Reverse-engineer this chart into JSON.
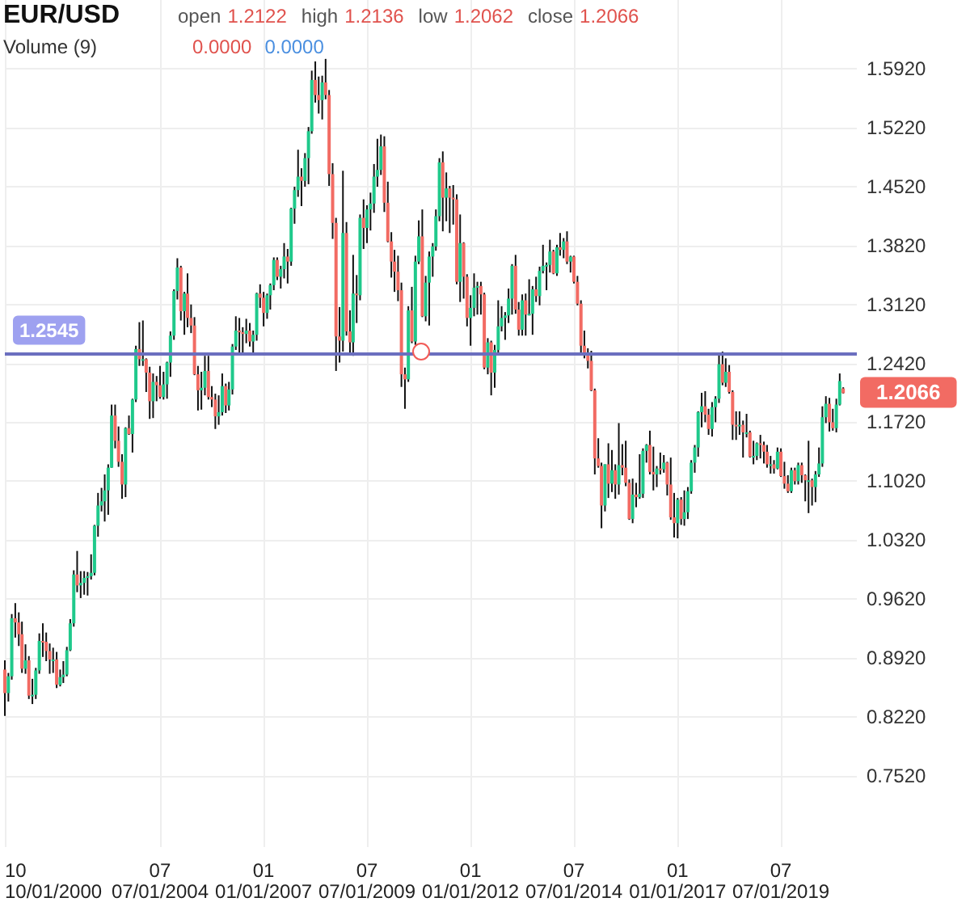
{
  "chart_data": {
    "type": "candlestick",
    "title": "EUR/USD",
    "annotations": [
      "open",
      "1.2122",
      "high",
      "1.2136",
      "low",
      "1.2062",
      "close",
      "1.2066",
      "Volume (9)",
      "0.0000",
      "0.0000",
      {
        "text": "1.2066",
        "x": "2021-01",
        "y": 1.2066
      }
    ],
    "x": [
      "2000-10",
      "2000-11",
      "2000-12",
      "2001-01",
      "2001-02",
      "2001-03",
      "2001-04",
      "2001-05",
      "2001-06",
      "2001-07",
      "2001-08",
      "2001-09",
      "2001-10",
      "2001-11",
      "2001-12",
      "2002-01",
      "2002-02",
      "2002-03",
      "2002-04",
      "2002-05",
      "2002-06",
      "2002-07",
      "2002-08",
      "2002-09",
      "2002-10",
      "2002-11",
      "2002-12",
      "2003-01",
      "2003-02",
      "2003-03",
      "2003-04",
      "2003-05",
      "2003-06",
      "2003-07",
      "2003-08",
      "2003-09",
      "2003-10",
      "2003-11",
      "2003-12",
      "2004-01",
      "2004-02",
      "2004-03",
      "2004-04",
      "2004-05",
      "2004-06",
      "2004-07",
      "2004-08",
      "2004-09",
      "2004-10",
      "2004-11",
      "2004-12",
      "2005-01",
      "2005-02",
      "2005-03",
      "2005-04",
      "2005-05",
      "2005-06",
      "2005-07",
      "2005-08",
      "2005-09",
      "2005-10",
      "2005-11",
      "2005-12",
      "2006-01",
      "2006-02",
      "2006-03",
      "2006-04",
      "2006-05",
      "2006-06",
      "2006-07",
      "2006-08",
      "2006-09",
      "2006-10",
      "2006-11",
      "2006-12",
      "2007-01",
      "2007-02",
      "2007-03",
      "2007-04",
      "2007-05",
      "2007-06",
      "2007-07",
      "2007-08",
      "2007-09",
      "2007-10",
      "2007-11",
      "2007-12",
      "2008-01",
      "2008-02",
      "2008-03",
      "2008-04",
      "2008-05",
      "2008-06",
      "2008-07",
      "2008-08",
      "2008-09",
      "2008-10",
      "2008-11",
      "2008-12",
      "2009-01",
      "2009-02",
      "2009-03",
      "2009-04",
      "2009-05",
      "2009-06",
      "2009-07",
      "2009-08",
      "2009-09",
      "2009-10",
      "2009-11",
      "2009-12",
      "2010-01",
      "2010-02",
      "2010-03",
      "2010-04",
      "2010-05",
      "2010-06",
      "2010-07",
      "2010-08",
      "2010-09",
      "2010-10",
      "2010-11",
      "2010-12",
      "2011-01",
      "2011-02",
      "2011-03",
      "2011-04",
      "2011-05",
      "2011-06",
      "2011-07",
      "2011-08",
      "2011-09",
      "2011-10",
      "2011-11",
      "2011-12",
      "2012-01",
      "2012-02",
      "2012-03",
      "2012-04",
      "2012-05",
      "2012-06",
      "2012-07",
      "2012-08",
      "2012-09",
      "2012-10",
      "2012-11",
      "2012-12",
      "2013-01",
      "2013-02",
      "2013-03",
      "2013-04",
      "2013-05",
      "2013-06",
      "2013-07",
      "2013-08",
      "2013-09",
      "2013-10",
      "2013-11",
      "2013-12",
      "2014-01",
      "2014-02",
      "2014-03",
      "2014-04",
      "2014-05",
      "2014-06",
      "2014-07",
      "2014-08",
      "2014-09",
      "2014-10",
      "2014-11",
      "2014-12",
      "2015-01",
      "2015-02",
      "2015-03",
      "2015-04",
      "2015-05",
      "2015-06",
      "2015-07",
      "2015-08",
      "2015-09",
      "2015-10",
      "2015-11",
      "2015-12",
      "2016-01",
      "2016-02",
      "2016-03",
      "2016-04",
      "2016-05",
      "2016-06",
      "2016-07",
      "2016-08",
      "2016-09",
      "2016-10",
      "2016-11",
      "2016-12",
      "2017-01",
      "2017-02",
      "2017-03",
      "2017-04",
      "2017-05",
      "2017-06",
      "2017-07",
      "2017-08",
      "2017-09",
      "2017-10",
      "2017-11",
      "2017-12",
      "2018-01",
      "2018-02",
      "2018-03",
      "2018-04",
      "2018-05",
      "2018-06",
      "2018-07",
      "2018-08",
      "2018-09",
      "2018-10",
      "2018-11",
      "2018-12",
      "2019-01",
      "2019-02",
      "2019-03",
      "2019-04",
      "2019-05",
      "2019-06",
      "2019-07",
      "2019-08",
      "2019-09",
      "2019-10",
      "2019-11",
      "2019-12",
      "2020-01",
      "2020-02",
      "2020-03",
      "2020-04",
      "2020-05",
      "2020-06",
      "2020-07",
      "2020-08",
      "2020-09",
      "2020-10",
      "2020-11",
      "2020-12",
      "2021-01"
    ],
    "ohlc": [
      [
        0.878,
        0.889,
        0.823,
        0.85
      ],
      [
        0.85,
        0.874,
        0.84,
        0.87
      ],
      [
        0.87,
        0.944,
        0.866,
        0.939
      ],
      [
        0.939,
        0.957,
        0.916,
        0.934
      ],
      [
        0.934,
        0.946,
        0.906,
        0.92
      ],
      [
        0.92,
        0.935,
        0.874,
        0.879
      ],
      [
        0.879,
        0.908,
        0.873,
        0.889
      ],
      [
        0.889,
        0.894,
        0.843,
        0.847
      ],
      [
        0.847,
        0.867,
        0.837,
        0.848
      ],
      [
        0.848,
        0.88,
        0.843,
        0.877
      ],
      [
        0.877,
        0.921,
        0.873,
        0.912
      ],
      [
        0.912,
        0.933,
        0.893,
        0.911
      ],
      [
        0.911,
        0.922,
        0.888,
        0.9
      ],
      [
        0.9,
        0.909,
        0.873,
        0.89
      ],
      [
        0.89,
        0.904,
        0.874,
        0.89
      ],
      [
        0.89,
        0.899,
        0.856,
        0.86
      ],
      [
        0.86,
        0.878,
        0.858,
        0.869
      ],
      [
        0.869,
        0.888,
        0.862,
        0.872
      ],
      [
        0.872,
        0.905,
        0.87,
        0.901
      ],
      [
        0.901,
        0.938,
        0.9,
        0.933
      ],
      [
        0.933,
        0.996,
        0.929,
        0.991
      ],
      [
        0.991,
        1.019,
        0.97,
        0.978
      ],
      [
        0.978,
        0.995,
        0.963,
        0.981
      ],
      [
        0.981,
        0.995,
        0.967,
        0.987
      ],
      [
        0.987,
        0.994,
        0.966,
        0.989
      ],
      [
        0.989,
        1.015,
        0.985,
        0.993
      ],
      [
        0.993,
        1.05,
        0.99,
        1.049
      ],
      [
        1.049,
        1.088,
        1.036,
        1.073
      ],
      [
        1.073,
        1.094,
        1.066,
        1.078
      ],
      [
        1.078,
        1.11,
        1.054,
        1.091
      ],
      [
        1.091,
        1.122,
        1.062,
        1.118
      ],
      [
        1.118,
        1.193,
        1.118,
        1.18
      ],
      [
        1.18,
        1.193,
        1.141,
        1.15
      ],
      [
        1.15,
        1.167,
        1.119,
        1.125
      ],
      [
        1.125,
        1.134,
        1.081,
        1.098
      ],
      [
        1.098,
        1.166,
        1.083,
        1.165
      ],
      [
        1.165,
        1.18,
        1.157,
        1.158
      ],
      [
        1.158,
        1.2,
        1.136,
        1.199
      ],
      [
        1.199,
        1.263,
        1.196,
        1.259
      ],
      [
        1.259,
        1.291,
        1.239,
        1.247
      ],
      [
        1.247,
        1.293,
        1.239,
        1.247
      ],
      [
        1.247,
        1.248,
        1.208,
        1.231
      ],
      [
        1.231,
        1.238,
        1.176,
        1.197
      ],
      [
        1.197,
        1.23,
        1.177,
        1.22
      ],
      [
        1.22,
        1.227,
        1.197,
        1.216
      ],
      [
        1.216,
        1.239,
        1.2,
        1.202
      ],
      [
        1.202,
        1.232,
        1.199,
        1.217
      ],
      [
        1.217,
        1.244,
        1.2,
        1.243
      ],
      [
        1.243,
        1.28,
        1.226,
        1.275
      ],
      [
        1.275,
        1.33,
        1.27,
        1.328
      ],
      [
        1.328,
        1.367,
        1.318,
        1.356
      ],
      [
        1.356,
        1.358,
        1.293,
        1.304
      ],
      [
        1.304,
        1.327,
        1.276,
        1.325
      ],
      [
        1.325,
        1.349,
        1.285,
        1.296
      ],
      [
        1.296,
        1.312,
        1.278,
        1.287
      ],
      [
        1.287,
        1.297,
        1.228,
        1.229
      ],
      [
        1.229,
        1.239,
        1.186,
        1.21
      ],
      [
        1.21,
        1.232,
        1.187,
        1.213
      ],
      [
        1.213,
        1.251,
        1.204,
        1.233
      ],
      [
        1.233,
        1.251,
        1.199,
        1.202
      ],
      [
        1.202,
        1.215,
        1.19,
        1.199
      ],
      [
        1.199,
        1.206,
        1.164,
        1.179
      ],
      [
        1.179,
        1.204,
        1.169,
        1.184
      ],
      [
        1.184,
        1.23,
        1.18,
        1.215
      ],
      [
        1.215,
        1.218,
        1.183,
        1.192
      ],
      [
        1.192,
        1.22,
        1.186,
        1.211
      ],
      [
        1.211,
        1.265,
        1.205,
        1.262
      ],
      [
        1.262,
        1.298,
        1.258,
        1.281
      ],
      [
        1.281,
        1.296,
        1.252,
        1.279
      ],
      [
        1.279,
        1.285,
        1.252,
        1.277
      ],
      [
        1.277,
        1.295,
        1.266,
        1.281
      ],
      [
        1.281,
        1.29,
        1.262,
        1.268
      ],
      [
        1.268,
        1.281,
        1.252,
        1.276
      ],
      [
        1.276,
        1.326,
        1.269,
        1.325
      ],
      [
        1.325,
        1.336,
        1.308,
        1.32
      ],
      [
        1.32,
        1.327,
        1.286,
        1.302
      ],
      [
        1.302,
        1.325,
        1.295,
        1.323
      ],
      [
        1.323,
        1.337,
        1.306,
        1.335
      ],
      [
        1.335,
        1.368,
        1.329,
        1.365
      ],
      [
        1.365,
        1.368,
        1.341,
        1.345
      ],
      [
        1.345,
        1.358,
        1.331,
        1.354
      ],
      [
        1.354,
        1.385,
        1.343,
        1.369
      ],
      [
        1.369,
        1.378,
        1.337,
        1.363
      ],
      [
        1.363,
        1.427,
        1.358,
        1.426
      ],
      [
        1.426,
        1.452,
        1.408,
        1.448
      ],
      [
        1.448,
        1.496,
        1.44,
        1.464
      ],
      [
        1.464,
        1.474,
        1.429,
        1.459
      ],
      [
        1.459,
        1.492,
        1.452,
        1.486
      ],
      [
        1.486,
        1.523,
        1.455,
        1.518
      ],
      [
        1.518,
        1.59,
        1.515,
        1.579
      ],
      [
        1.579,
        1.601,
        1.552,
        1.561
      ],
      [
        1.561,
        1.583,
        1.539,
        1.555
      ],
      [
        1.555,
        1.584,
        1.532,
        1.576
      ],
      [
        1.576,
        1.604,
        1.556,
        1.561
      ],
      [
        1.561,
        1.567,
        1.453,
        1.467
      ],
      [
        1.467,
        1.48,
        1.39,
        1.409
      ],
      [
        1.409,
        1.415,
        1.233,
        1.274
      ],
      [
        1.274,
        1.309,
        1.243,
        1.269
      ],
      [
        1.269,
        1.471,
        1.256,
        1.397
      ],
      [
        1.397,
        1.41,
        1.275,
        1.28
      ],
      [
        1.28,
        1.305,
        1.252,
        1.267
      ],
      [
        1.267,
        1.371,
        1.251,
        1.325
      ],
      [
        1.325,
        1.347,
        1.29,
        1.323
      ],
      [
        1.323,
        1.419,
        1.317,
        1.415
      ],
      [
        1.415,
        1.437,
        1.378,
        1.403
      ],
      [
        1.403,
        1.43,
        1.385,
        1.425
      ],
      [
        1.425,
        1.445,
        1.4,
        1.432
      ],
      [
        1.432,
        1.479,
        1.421,
        1.464
      ],
      [
        1.464,
        1.509,
        1.452,
        1.472
      ],
      [
        1.472,
        1.514,
        1.466,
        1.5
      ],
      [
        1.5,
        1.512,
        1.422,
        1.433
      ],
      [
        1.433,
        1.458,
        1.386,
        1.387
      ],
      [
        1.387,
        1.398,
        1.344,
        1.363
      ],
      [
        1.363,
        1.377,
        1.327,
        1.351
      ],
      [
        1.351,
        1.37,
        1.316,
        1.329
      ],
      [
        1.329,
        1.338,
        1.214,
        1.229
      ],
      [
        1.229,
        1.237,
        1.188,
        1.223
      ],
      [
        1.223,
        1.31,
        1.22,
        1.305
      ],
      [
        1.305,
        1.333,
        1.266,
        1.268
      ],
      [
        1.268,
        1.37,
        1.264,
        1.363
      ],
      [
        1.363,
        1.412,
        1.36,
        1.393
      ],
      [
        1.393,
        1.425,
        1.297,
        1.298
      ],
      [
        1.298,
        1.346,
        1.292,
        1.338
      ],
      [
        1.338,
        1.375,
        1.287,
        1.369
      ],
      [
        1.369,
        1.385,
        1.345,
        1.381
      ],
      [
        1.381,
        1.425,
        1.376,
        1.417
      ],
      [
        1.417,
        1.486,
        1.411,
        1.481
      ],
      [
        1.481,
        1.494,
        1.399,
        1.439
      ],
      [
        1.439,
        1.469,
        1.411,
        1.45
      ],
      [
        1.45,
        1.453,
        1.397,
        1.439
      ],
      [
        1.439,
        1.454,
        1.407,
        1.437
      ],
      [
        1.437,
        1.443,
        1.336,
        1.339
      ],
      [
        1.339,
        1.419,
        1.315,
        1.385
      ],
      [
        1.385,
        1.386,
        1.319,
        1.345
      ],
      [
        1.345,
        1.348,
        1.286,
        1.296
      ],
      [
        1.296,
        1.323,
        1.263,
        1.308
      ],
      [
        1.308,
        1.349,
        1.298,
        1.332
      ],
      [
        1.332,
        1.339,
        1.3,
        1.334
      ],
      [
        1.334,
        1.339,
        1.3,
        1.324
      ],
      [
        1.324,
        1.326,
        1.235,
        1.237
      ],
      [
        1.237,
        1.272,
        1.229,
        1.267
      ],
      [
        1.267,
        1.269,
        1.204,
        1.231
      ],
      [
        1.231,
        1.264,
        1.213,
        1.258
      ],
      [
        1.258,
        1.317,
        1.254,
        1.286
      ],
      [
        1.286,
        1.31,
        1.28,
        1.296
      ],
      [
        1.296,
        1.303,
        1.27,
        1.299
      ],
      [
        1.299,
        1.331,
        1.29,
        1.319
      ],
      [
        1.319,
        1.36,
        1.3,
        1.358
      ],
      [
        1.358,
        1.371,
        1.301,
        1.306
      ],
      [
        1.306,
        1.315,
        1.275,
        1.282
      ],
      [
        1.282,
        1.324,
        1.275,
        1.317
      ],
      [
        1.317,
        1.325,
        1.275,
        1.3
      ],
      [
        1.3,
        1.342,
        1.299,
        1.301
      ],
      [
        1.301,
        1.334,
        1.276,
        1.33
      ],
      [
        1.33,
        1.345,
        1.315,
        1.322
      ],
      [
        1.322,
        1.357,
        1.311,
        1.352
      ],
      [
        1.352,
        1.383,
        1.349,
        1.358
      ],
      [
        1.358,
        1.362,
        1.329,
        1.359
      ],
      [
        1.359,
        1.389,
        1.35,
        1.375
      ],
      [
        1.375,
        1.377,
        1.348,
        1.349
      ],
      [
        1.349,
        1.383,
        1.346,
        1.38
      ],
      [
        1.38,
        1.397,
        1.37,
        1.377
      ],
      [
        1.377,
        1.391,
        1.367,
        1.387
      ],
      [
        1.387,
        1.399,
        1.36,
        1.363
      ],
      [
        1.363,
        1.37,
        1.35,
        1.369
      ],
      [
        1.369,
        1.37,
        1.337,
        1.339
      ],
      [
        1.339,
        1.346,
        1.311,
        1.313
      ],
      [
        1.313,
        1.317,
        1.255,
        1.263
      ],
      [
        1.263,
        1.281,
        1.248,
        1.253
      ],
      [
        1.253,
        1.26,
        1.236,
        1.245
      ],
      [
        1.245,
        1.257,
        1.209,
        1.21
      ],
      [
        1.21,
        1.212,
        1.11,
        1.129
      ],
      [
        1.129,
        1.153,
        1.118,
        1.12
      ],
      [
        1.12,
        1.124,
        1.046,
        1.073
      ],
      [
        1.073,
        1.122,
        1.066,
        1.122
      ],
      [
        1.122,
        1.147,
        1.082,
        1.099
      ],
      [
        1.099,
        1.139,
        1.089,
        1.115
      ],
      [
        1.115,
        1.122,
        1.081,
        1.098
      ],
      [
        1.098,
        1.171,
        1.086,
        1.121
      ],
      [
        1.121,
        1.146,
        1.109,
        1.118
      ],
      [
        1.118,
        1.15,
        1.096,
        1.1
      ],
      [
        1.1,
        1.104,
        1.056,
        1.057
      ],
      [
        1.057,
        1.105,
        1.052,
        1.086
      ],
      [
        1.086,
        1.1,
        1.071,
        1.083
      ],
      [
        1.083,
        1.134,
        1.081,
        1.087
      ],
      [
        1.087,
        1.141,
        1.082,
        1.138
      ],
      [
        1.138,
        1.146,
        1.124,
        1.145
      ],
      [
        1.145,
        1.162,
        1.11,
        1.113
      ],
      [
        1.113,
        1.143,
        1.091,
        1.11
      ],
      [
        1.11,
        1.12,
        1.095,
        1.117
      ],
      [
        1.117,
        1.136,
        1.11,
        1.116
      ],
      [
        1.116,
        1.133,
        1.112,
        1.124
      ],
      [
        1.124,
        1.125,
        1.085,
        1.098
      ],
      [
        1.098,
        1.13,
        1.056,
        1.059
      ],
      [
        1.059,
        1.088,
        1.035,
        1.052
      ],
      [
        1.052,
        1.082,
        1.034,
        1.08
      ],
      [
        1.08,
        1.083,
        1.05,
        1.057
      ],
      [
        1.057,
        1.091,
        1.049,
        1.065
      ],
      [
        1.065,
        1.095,
        1.057,
        1.09
      ],
      [
        1.09,
        1.127,
        1.087,
        1.124
      ],
      [
        1.124,
        1.145,
        1.112,
        1.142
      ],
      [
        1.142,
        1.185,
        1.131,
        1.184
      ],
      [
        1.184,
        1.207,
        1.166,
        1.191
      ],
      [
        1.191,
        1.209,
        1.172,
        1.181
      ],
      [
        1.181,
        1.188,
        1.157,
        1.164
      ],
      [
        1.164,
        1.196,
        1.155,
        1.19
      ],
      [
        1.19,
        1.203,
        1.172,
        1.2
      ],
      [
        1.2,
        1.254,
        1.195,
        1.241
      ],
      [
        1.241,
        1.256,
        1.216,
        1.219
      ],
      [
        1.219,
        1.248,
        1.214,
        1.232
      ],
      [
        1.232,
        1.24,
        1.206,
        1.208
      ],
      [
        1.208,
        1.21,
        1.151,
        1.169
      ],
      [
        1.169,
        1.185,
        1.151,
        1.168
      ],
      [
        1.168,
        1.185,
        1.157,
        1.169
      ],
      [
        1.169,
        1.174,
        1.13,
        1.16
      ],
      [
        1.16,
        1.182,
        1.154,
        1.16
      ],
      [
        1.16,
        1.162,
        1.13,
        1.131
      ],
      [
        1.131,
        1.15,
        1.122,
        1.132
      ],
      [
        1.132,
        1.148,
        1.127,
        1.147
      ],
      [
        1.147,
        1.157,
        1.129,
        1.145
      ],
      [
        1.145,
        1.149,
        1.123,
        1.137
      ],
      [
        1.137,
        1.145,
        1.118,
        1.122
      ],
      [
        1.122,
        1.132,
        1.111,
        1.122
      ],
      [
        1.122,
        1.127,
        1.111,
        1.117
      ],
      [
        1.117,
        1.142,
        1.116,
        1.137
      ],
      [
        1.137,
        1.141,
        1.107,
        1.108
      ],
      [
        1.108,
        1.125,
        1.093,
        1.099
      ],
      [
        1.099,
        1.109,
        1.088,
        1.09
      ],
      [
        1.09,
        1.118,
        1.088,
        1.115
      ],
      [
        1.115,
        1.118,
        1.098,
        1.102
      ],
      [
        1.102,
        1.124,
        1.098,
        1.121
      ],
      [
        1.121,
        1.124,
        1.1,
        1.109
      ],
      [
        1.109,
        1.11,
        1.078,
        1.103
      ],
      [
        1.103,
        1.15,
        1.064,
        1.103
      ],
      [
        1.103,
        1.105,
        1.073,
        1.095
      ],
      [
        1.095,
        1.114,
        1.077,
        1.11
      ],
      [
        1.11,
        1.142,
        1.107,
        1.123
      ],
      [
        1.123,
        1.191,
        1.119,
        1.178
      ],
      [
        1.178,
        1.203,
        1.171,
        1.194
      ],
      [
        1.194,
        1.201,
        1.161,
        1.172
      ],
      [
        1.172,
        1.188,
        1.162,
        1.165
      ],
      [
        1.165,
        1.2,
        1.16,
        1.193
      ],
      [
        1.193,
        1.23,
        1.192,
        1.221
      ],
      [
        1.2122,
        1.2136,
        1.2062,
        1.2066
      ]
    ],
    "xlim": [
      "2000-10",
      "2021-05"
    ],
    "xticks": [
      {
        "value": "2000-10",
        "label": "10\n10/01/2000"
      },
      {
        "value": "2004-07",
        "label": "07\n07/01/2004"
      },
      {
        "value": "2007-01",
        "label": "01\n01/01/2007"
      },
      {
        "value": "2009-07",
        "label": "07\n07/01/2009"
      },
      {
        "value": "2012-01",
        "label": "01\n01/01/2012"
      },
      {
        "value": "2014-07",
        "label": "07\n07/01/2014"
      },
      {
        "value": "2017-01",
        "label": "01\n01/01/2017"
      },
      {
        "value": "2019-07",
        "label": "07\n07/01/2019"
      }
    ],
    "ylim": [
      0.667,
      1.674
    ],
    "yticks": [
      {
        "value": 0.752,
        "label": "0.7520"
      },
      {
        "value": 0.822,
        "label": "0.8220"
      },
      {
        "value": 0.892,
        "label": "0.8920"
      },
      {
        "value": 0.962,
        "label": "0.9620"
      },
      {
        "value": 1.032,
        "label": "1.0320"
      },
      {
        "value": 1.102,
        "label": "1.1020"
      },
      {
        "value": 1.172,
        "label": "1.1720"
      },
      {
        "value": 1.242,
        "label": "1.2420"
      },
      {
        "value": 1.312,
        "label": "1.3120"
      },
      {
        "value": 1.382,
        "label": "1.3820"
      },
      {
        "value": 1.452,
        "label": "1.4520"
      },
      {
        "value": 1.522,
        "label": "1.5220"
      },
      {
        "value": 1.592,
        "label": "1.5920"
      }
    ],
    "ref_lines": [
      {
        "axis": "y",
        "value": 1.2545,
        "label": "1.2545",
        "color": "#6b6fbf"
      }
    ],
    "grid": true
  }
}
